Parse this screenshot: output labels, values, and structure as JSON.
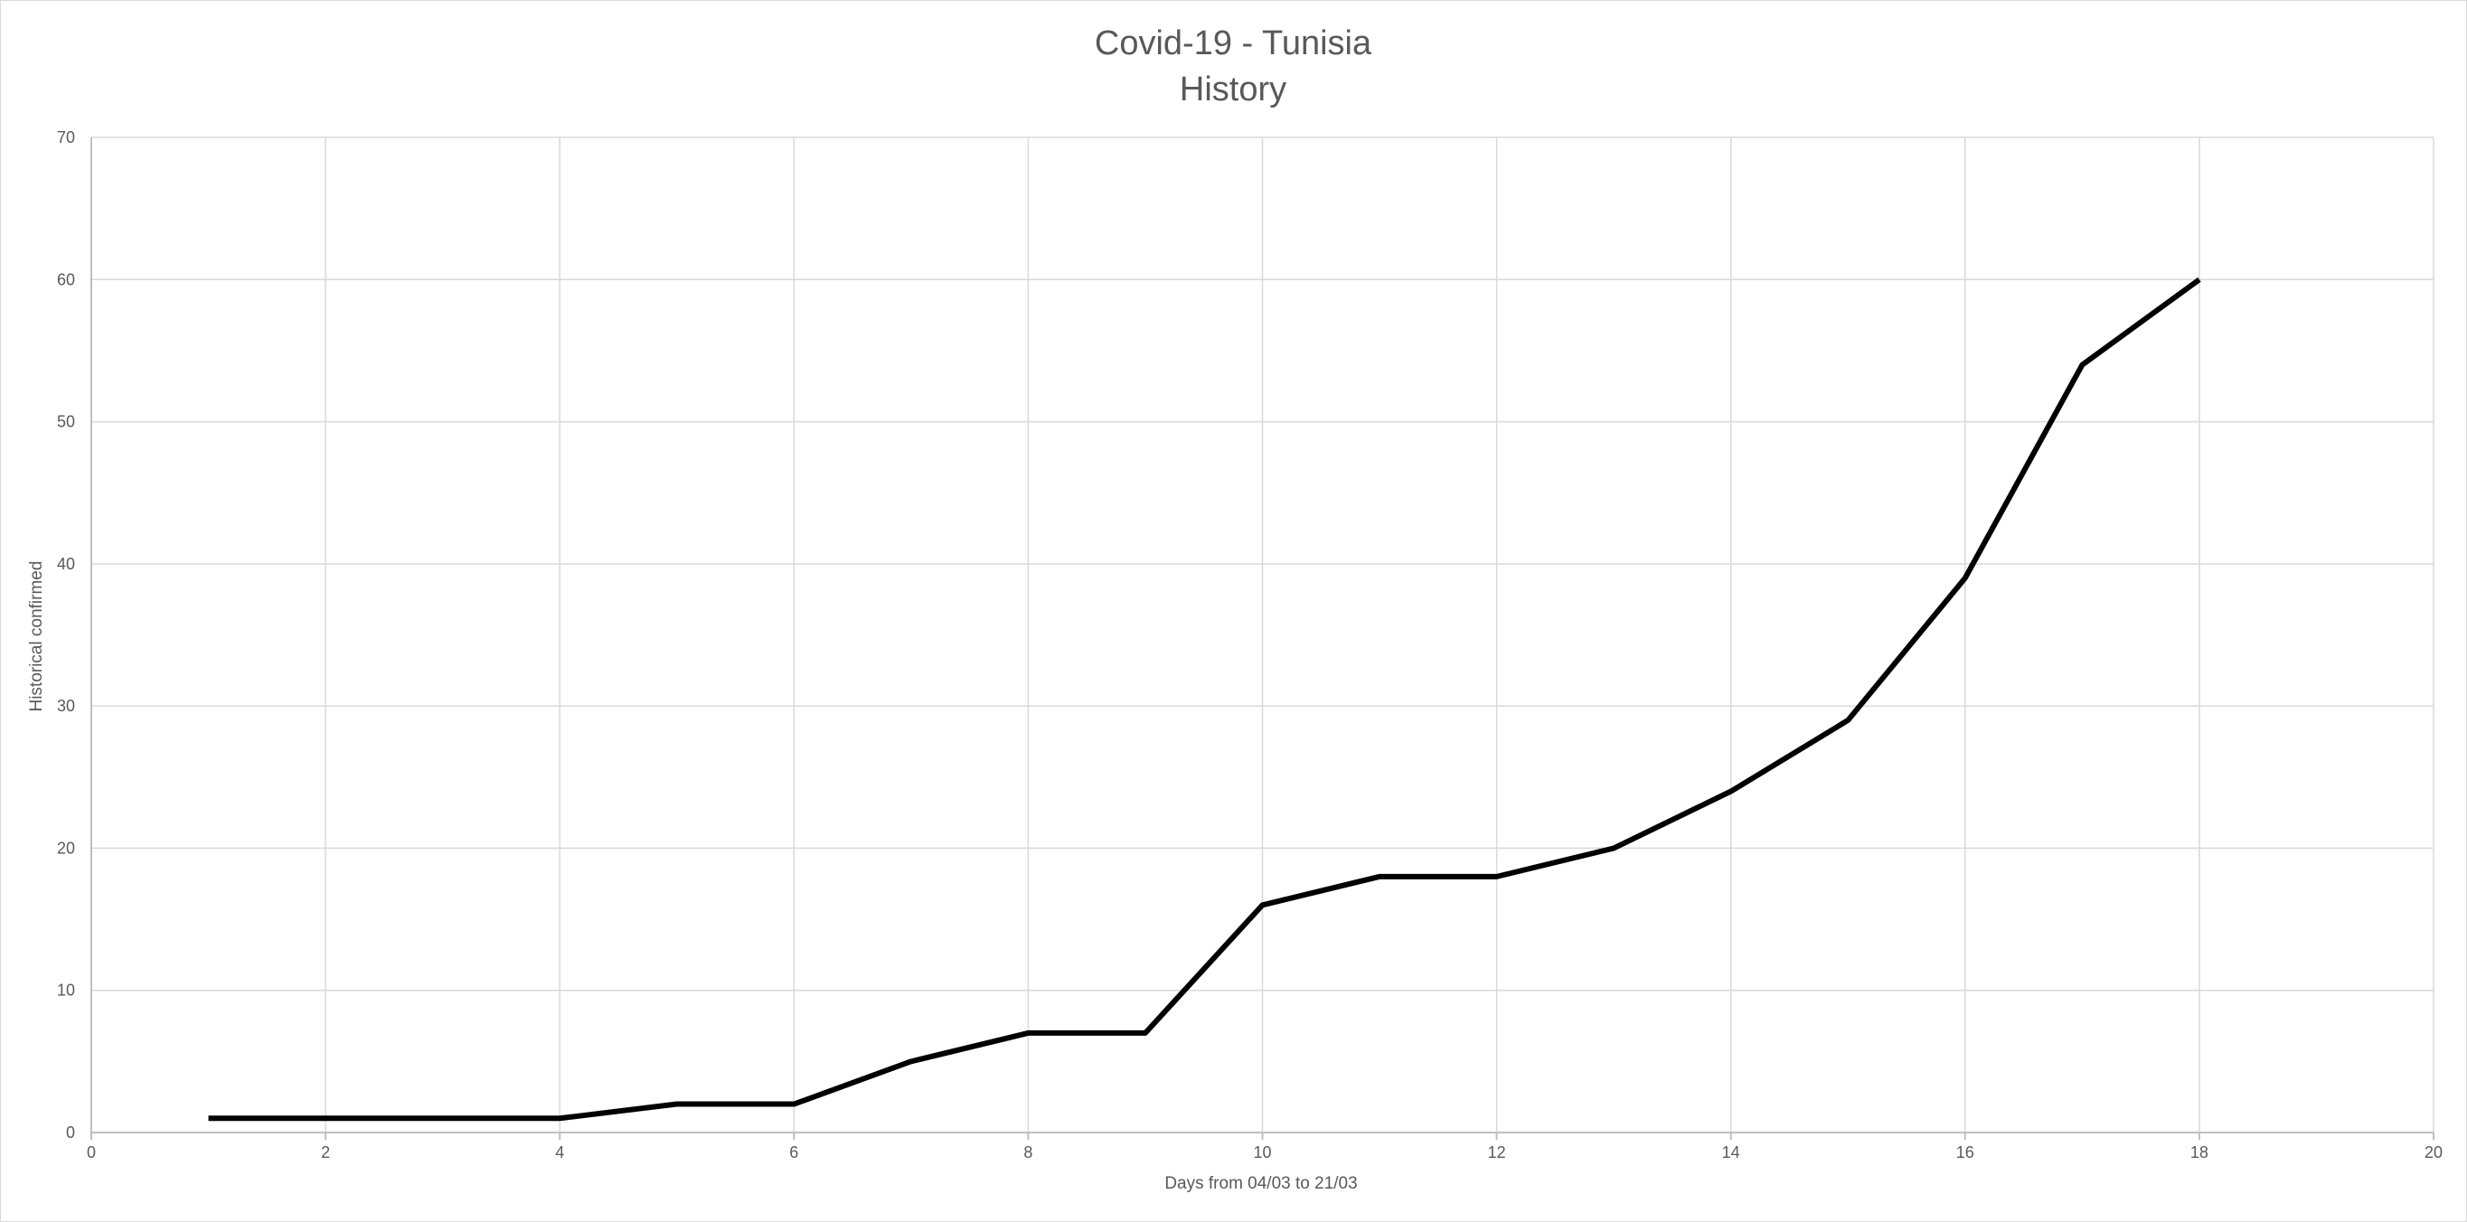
{
  "chart_data": {
    "type": "line",
    "title": "Covid-19 - Tunisia",
    "subtitle": "History",
    "xlabel": "Days from 04/03 to 21/03",
    "ylabel": "Historical confirmed",
    "xlim": [
      0,
      20
    ],
    "ylim": [
      0,
      70
    ],
    "x_ticks": [
      0,
      2,
      4,
      6,
      8,
      10,
      12,
      14,
      16,
      18,
      20
    ],
    "y_ticks": [
      0,
      10,
      20,
      30,
      40,
      50,
      60,
      70
    ],
    "grid": true,
    "legend": "none",
    "series": [
      {
        "color": "#000000",
        "x": [
          1,
          2,
          3,
          4,
          5,
          6,
          7,
          8,
          9,
          10,
          11,
          12,
          13,
          14,
          15,
          16,
          17,
          18
        ],
        "y": [
          1,
          1,
          1,
          1,
          2,
          2,
          5,
          7,
          7,
          16,
          18,
          18,
          20,
          24,
          29,
          39,
          54,
          60
        ]
      }
    ]
  }
}
